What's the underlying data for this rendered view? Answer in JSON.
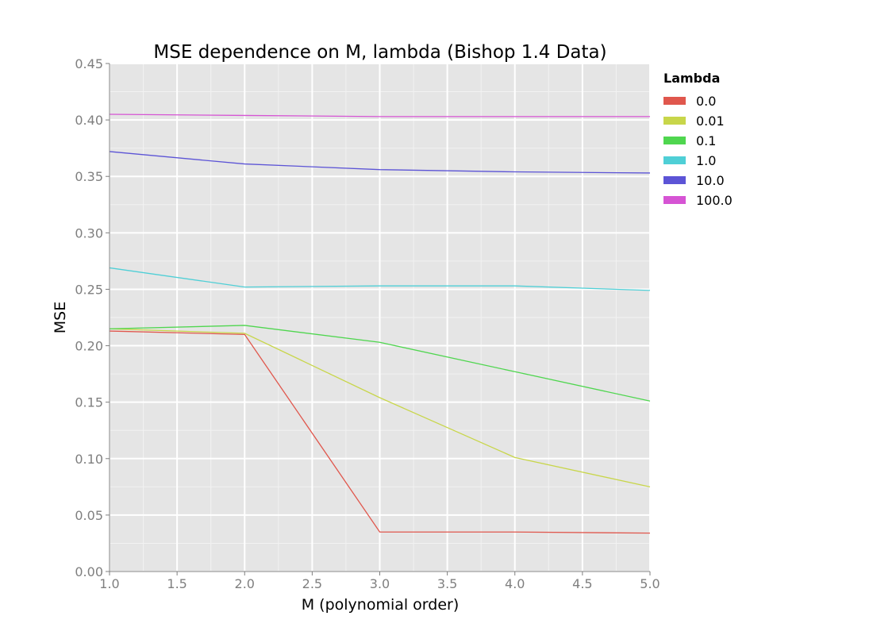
{
  "chart_data": {
    "type": "line",
    "title": "MSE dependence on M, lambda (Bishop 1.4 Data)",
    "xlabel": "M (polynomial order)",
    "ylabel": "MSE",
    "x": [
      1,
      2,
      3,
      4,
      5
    ],
    "xlim": [
      1.0,
      5.0
    ],
    "ylim": [
      0.0,
      0.45
    ],
    "xticks": [
      "1.0",
      "1.5",
      "2.0",
      "2.5",
      "3.0",
      "3.5",
      "4.0",
      "4.5",
      "5.0"
    ],
    "yticks": [
      "0.00",
      "0.05",
      "0.10",
      "0.15",
      "0.20",
      "0.25",
      "0.30",
      "0.35",
      "0.40",
      "0.45"
    ],
    "grid": true,
    "legend": {
      "title": "Lambda",
      "placement": "right"
    },
    "series": [
      {
        "name": "0.0",
        "color": "#e0574d",
        "values": [
          0.213,
          0.21,
          0.035,
          0.035,
          0.034
        ]
      },
      {
        "name": "0.01",
        "color": "#c8d64a",
        "values": [
          0.215,
          0.211,
          0.154,
          0.101,
          0.075
        ]
      },
      {
        "name": "0.1",
        "color": "#4fd64f",
        "values": [
          0.215,
          0.218,
          0.203,
          0.177,
          0.151
        ]
      },
      {
        "name": "1.0",
        "color": "#4fcfd6",
        "values": [
          0.269,
          0.252,
          0.253,
          0.253,
          0.249
        ]
      },
      {
        "name": "10.0",
        "color": "#5c54d6",
        "values": [
          0.372,
          0.361,
          0.356,
          0.354,
          0.353
        ]
      },
      {
        "name": "100.0",
        "color": "#d654d4",
        "values": [
          0.405,
          0.404,
          0.403,
          0.403,
          0.403
        ]
      }
    ]
  }
}
